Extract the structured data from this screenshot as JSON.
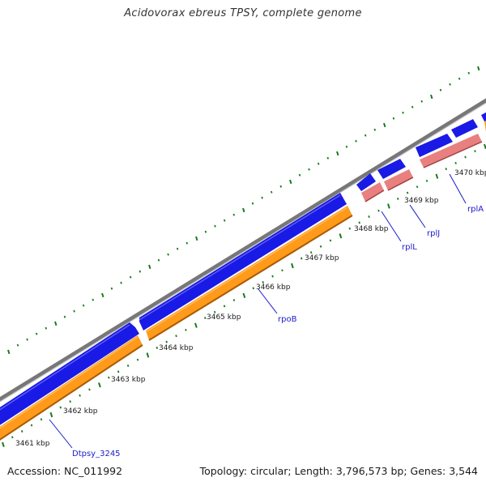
{
  "title": "Acidovorax ebreus TPSY, complete genome",
  "footer": {
    "accession": "Accession: NC_011992",
    "summary": "Topology: circular; Length: 3,796,573 bp; Genes: 3,544"
  },
  "colors": {
    "backbone": "#888888",
    "cds_forward": "#1a1ae6",
    "gene_forward": "#ff9a1a",
    "rna_forward": "#e88080",
    "tick": "#1a7a1a",
    "label": "#1a1acc"
  },
  "position_labels": [
    "3461 kbp",
    "3462 kbp",
    "3463 kbp",
    "3464 kbp",
    "3465 kbp",
    "3466 kbp",
    "3467 kbp",
    "3468 kbp",
    "3469 kbp",
    "3470 kbp"
  ],
  "gene_labels": [
    "Dtpsy_3245",
    "rpoB",
    "rplL",
    "rplJ",
    "rplA"
  ]
}
